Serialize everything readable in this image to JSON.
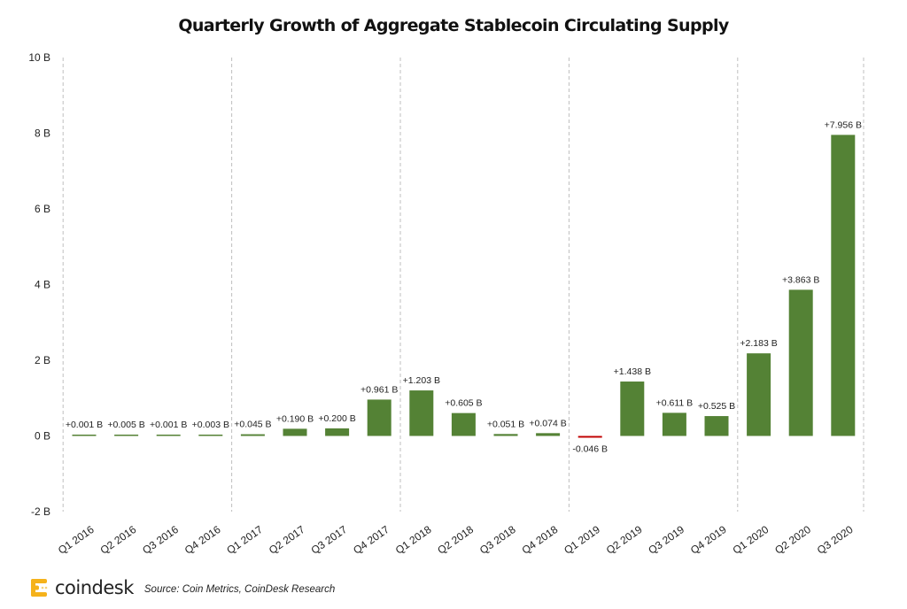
{
  "chart_data": {
    "type": "bar",
    "title": "Quarterly Growth of Aggregate Stablecoin Circulating Supply",
    "xlabel": "",
    "ylabel": "",
    "ylim": [
      -2,
      10
    ],
    "yticks": [
      10,
      8,
      6,
      4,
      2,
      0,
      -2
    ],
    "ytick_labels": [
      "10 B",
      "8 B",
      "6 B",
      "4 B",
      "2 B",
      "0 B",
      "-2 B"
    ],
    "grid": "vertical dashed year separators",
    "categories": [
      "Q1 2016",
      "Q2 2016",
      "Q3 2016",
      "Q4 2016",
      "Q1 2017",
      "Q2 2017",
      "Q3 2017",
      "Q4 2017",
      "Q1 2018",
      "Q2 2018",
      "Q3 2018",
      "Q4 2018",
      "Q1 2019",
      "Q2 2019",
      "Q3 2019",
      "Q4 2019",
      "Q1 2020",
      "Q2 2020",
      "Q3 2020"
    ],
    "values": [
      0.001,
      0.005,
      0.001,
      0.003,
      0.045,
      0.19,
      0.2,
      0.961,
      1.203,
      0.605,
      0.051,
      0.074,
      -0.046,
      1.438,
      0.611,
      0.525,
      2.183,
      3.863,
      7.956
    ],
    "data_labels": [
      "+0.001 B",
      "+0.005 B",
      "+0.001 B",
      "+0.003 B",
      "+0.045 B",
      "+0.190 B",
      "+0.200 B",
      "+0.961 B",
      "+1.203 B",
      "+0.605 B",
      "+0.051 B",
      "+0.074 B",
      "-0.046 B",
      "+1.438 B",
      "+0.611 B",
      "+0.525 B",
      "+2.183 B",
      "+3.863 B",
      "+7.956 B"
    ],
    "colors": {
      "positive": "#548235",
      "negative": "#c00000",
      "separator": "#bfbfbf"
    }
  },
  "footer": {
    "brand": "coindesk",
    "source": "Source: Coin Metrics, CoinDesk Research",
    "logo_color": "#f5b21b"
  }
}
